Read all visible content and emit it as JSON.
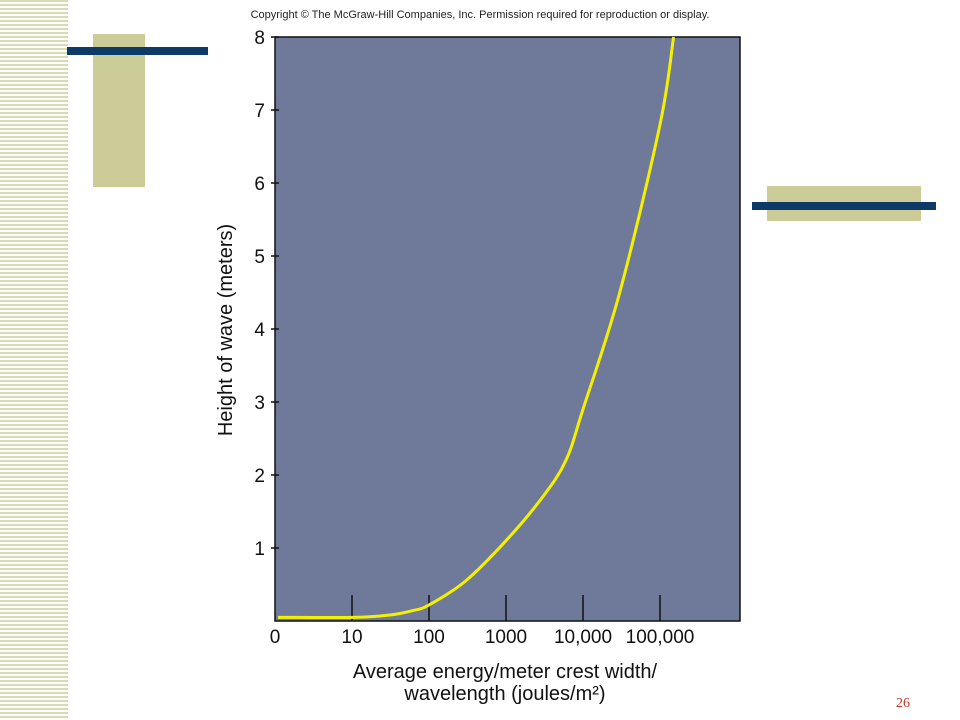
{
  "copyright": "Copyright © The McGraw-Hill Companies, Inc. Permission required for reproduction or display.",
  "page_number": "26",
  "colors": {
    "plot_background": "#6f7a9a",
    "curve": "#f5f000",
    "decor_block": "#cccc99",
    "decor_bar": "#0d3a66",
    "page_number": "#c0392b"
  },
  "chart_data": {
    "type": "line",
    "title": "",
    "xlabel": "Average energy/meter crest width/ wavelength (joules/m²)",
    "xlabel_lines": [
      "Average energy/meter crest width/",
      "wavelength (joules/m²)"
    ],
    "ylabel": "Height of wave (meters)",
    "x_scale": "log",
    "x_ticks": [
      {
        "value": 0,
        "label": "0"
      },
      {
        "value": 10,
        "label": "10"
      },
      {
        "value": 100,
        "label": "100"
      },
      {
        "value": 1000,
        "label": "1000"
      },
      {
        "value": 10000,
        "label": "10,000"
      },
      {
        "value": 100000,
        "label": "100,000"
      }
    ],
    "y_ticks": [
      1,
      2,
      3,
      4,
      5,
      6,
      7,
      8
    ],
    "ylim": [
      0,
      8
    ],
    "grid": false,
    "series": [
      {
        "x": [
          0,
          10,
          30,
          60,
          100,
          300,
          1000,
          3000,
          6000,
          10000,
          30000,
          100000,
          150000
        ],
        "y": [
          0.05,
          0.05,
          0.08,
          0.14,
          0.22,
          0.55,
          1.1,
          1.7,
          2.2,
          2.9,
          4.5,
          6.8,
          8.0
        ]
      }
    ]
  }
}
